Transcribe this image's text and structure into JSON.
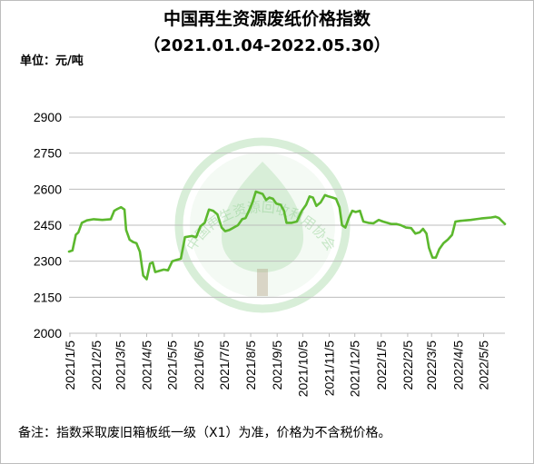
{
  "title": "中国再生资源废纸价格指数",
  "subtitle": "（2021.01.04-2022.05.30）",
  "unit": "单位：元/吨",
  "footnote": "备注：指数采取废旧箱板纸一级（X1）为准，价格为不含税价格。",
  "watermark": {
    "text": "中国再生资源回收利用协会",
    "color": "#8fcf8f"
  },
  "chart_data": {
    "type": "line",
    "title": "中国再生资源废纸价格指数",
    "subtitle": "（2021.01.04-2022.05.30）",
    "xlabel": "",
    "ylabel": "单位：元/吨",
    "ylim": [
      2000,
      2900
    ],
    "yticks": [
      2000,
      2150,
      2300,
      2450,
      2600,
      2750,
      2900
    ],
    "x_range": [
      "2021-01-04",
      "2022-05-30"
    ],
    "xtick_labels": [
      {
        "date": "2021-01-05",
        "label": "2021/1/5"
      },
      {
        "date": "2021-02-05",
        "label": "2021/2/5"
      },
      {
        "date": "2021-03-05",
        "label": "2021/3/5"
      },
      {
        "date": "2021-04-05",
        "label": "2021/4/5"
      },
      {
        "date": "2021-05-05",
        "label": "2021/5/5"
      },
      {
        "date": "2021-06-05",
        "label": "2021/6/5"
      },
      {
        "date": "2021-07-05",
        "label": "2021/7/5"
      },
      {
        "date": "2021-08-05",
        "label": "2021/8/5"
      },
      {
        "date": "2021-09-05",
        "label": "2021/9/5"
      },
      {
        "date": "2021-10-05",
        "label": "2021/10/5"
      },
      {
        "date": "2021-11-05",
        "label": "2021/11/5"
      },
      {
        "date": "2021-12-05",
        "label": "2021/12/5"
      },
      {
        "date": "2022-01-05",
        "label": "2022/1/5"
      },
      {
        "date": "2022-02-05",
        "label": "2022/2/5"
      },
      {
        "date": "2022-03-05",
        "label": "2022/3/5"
      },
      {
        "date": "2022-04-05",
        "label": "2022/4/5"
      },
      {
        "date": "2022-05-05",
        "label": "2022/5/5"
      }
    ],
    "grid": {
      "horizontal": true,
      "vertical": false
    },
    "legend": "none",
    "series": [
      {
        "color": "#5cb82e",
        "points": [
          [
            "2021-01-04",
            2340
          ],
          [
            "2021-01-08",
            2345
          ],
          [
            "2021-01-12",
            2410
          ],
          [
            "2021-01-15",
            2420
          ],
          [
            "2021-01-19",
            2460
          ],
          [
            "2021-01-25",
            2470
          ],
          [
            "2021-02-02",
            2475
          ],
          [
            "2021-02-12",
            2472
          ],
          [
            "2021-02-22",
            2475
          ],
          [
            "2021-02-26",
            2510
          ],
          [
            "2021-03-02",
            2518
          ],
          [
            "2021-03-06",
            2525
          ],
          [
            "2021-03-10",
            2515
          ],
          [
            "2021-03-12",
            2430
          ],
          [
            "2021-03-16",
            2390
          ],
          [
            "2021-03-20",
            2380
          ],
          [
            "2021-03-24",
            2375
          ],
          [
            "2021-03-28",
            2340
          ],
          [
            "2021-04-01",
            2240
          ],
          [
            "2021-04-05",
            2225
          ],
          [
            "2021-04-09",
            2290
          ],
          [
            "2021-04-12",
            2295
          ],
          [
            "2021-04-15",
            2255
          ],
          [
            "2021-04-20",
            2260
          ],
          [
            "2021-04-25",
            2265
          ],
          [
            "2021-04-30",
            2262
          ],
          [
            "2021-05-05",
            2300
          ],
          [
            "2021-05-10",
            2305
          ],
          [
            "2021-05-15",
            2310
          ],
          [
            "2021-05-20",
            2400
          ],
          [
            "2021-05-28",
            2405
          ],
          [
            "2021-06-02",
            2400
          ],
          [
            "2021-06-07",
            2445
          ],
          [
            "2021-06-12",
            2460
          ],
          [
            "2021-06-17",
            2515
          ],
          [
            "2021-06-22",
            2510
          ],
          [
            "2021-06-27",
            2495
          ],
          [
            "2021-07-02",
            2440
          ],
          [
            "2021-07-06",
            2425
          ],
          [
            "2021-07-11",
            2430
          ],
          [
            "2021-07-16",
            2440
          ],
          [
            "2021-07-21",
            2450
          ],
          [
            "2021-07-26",
            2475
          ],
          [
            "2021-07-30",
            2480
          ],
          [
            "2021-08-03",
            2510
          ],
          [
            "2021-08-07",
            2545
          ],
          [
            "2021-08-11",
            2590
          ],
          [
            "2021-08-15",
            2585
          ],
          [
            "2021-08-19",
            2580
          ],
          [
            "2021-08-23",
            2555
          ],
          [
            "2021-08-27",
            2565
          ],
          [
            "2021-08-31",
            2560
          ],
          [
            "2021-09-04",
            2540
          ],
          [
            "2021-09-09",
            2535
          ],
          [
            "2021-09-13",
            2510
          ],
          [
            "2021-09-16",
            2460
          ],
          [
            "2021-09-22",
            2460
          ],
          [
            "2021-09-28",
            2465
          ],
          [
            "2021-10-04",
            2510
          ],
          [
            "2021-10-09",
            2535
          ],
          [
            "2021-10-13",
            2570
          ],
          [
            "2021-10-17",
            2565
          ],
          [
            "2021-10-21",
            2530
          ],
          [
            "2021-10-26",
            2545
          ],
          [
            "2021-10-31",
            2575
          ],
          [
            "2021-11-04",
            2570
          ],
          [
            "2021-11-09",
            2565
          ],
          [
            "2021-11-13",
            2560
          ],
          [
            "2021-11-17",
            2525
          ],
          [
            "2021-11-20",
            2450
          ],
          [
            "2021-11-24",
            2440
          ],
          [
            "2021-11-28",
            2480
          ],
          [
            "2021-12-02",
            2510
          ],
          [
            "2021-12-06",
            2505
          ],
          [
            "2021-12-11",
            2510
          ],
          [
            "2021-12-15",
            2465
          ],
          [
            "2021-12-21",
            2460
          ],
          [
            "2021-12-27",
            2458
          ],
          [
            "2022-01-02",
            2472
          ],
          [
            "2022-01-07",
            2465
          ],
          [
            "2022-01-12",
            2460
          ],
          [
            "2022-01-17",
            2455
          ],
          [
            "2022-01-23",
            2455
          ],
          [
            "2022-01-28",
            2450
          ],
          [
            "2022-02-03",
            2440
          ],
          [
            "2022-02-09",
            2438
          ],
          [
            "2022-02-14",
            2415
          ],
          [
            "2022-02-19",
            2420
          ],
          [
            "2022-02-23",
            2435
          ],
          [
            "2022-02-27",
            2415
          ],
          [
            "2022-03-02",
            2355
          ],
          [
            "2022-03-06",
            2315
          ],
          [
            "2022-03-10",
            2315
          ],
          [
            "2022-03-14",
            2350
          ],
          [
            "2022-03-19",
            2375
          ],
          [
            "2022-03-24",
            2390
          ],
          [
            "2022-03-29",
            2410
          ],
          [
            "2022-04-02",
            2465
          ],
          [
            "2022-04-08",
            2468
          ],
          [
            "2022-04-14",
            2470
          ],
          [
            "2022-04-20",
            2472
          ],
          [
            "2022-04-26",
            2475
          ],
          [
            "2022-05-02",
            2478
          ],
          [
            "2022-05-08",
            2480
          ],
          [
            "2022-05-14",
            2482
          ],
          [
            "2022-05-19",
            2485
          ],
          [
            "2022-05-23",
            2480
          ],
          [
            "2022-05-27",
            2465
          ],
          [
            "2022-05-30",
            2455
          ]
        ]
      }
    ]
  }
}
